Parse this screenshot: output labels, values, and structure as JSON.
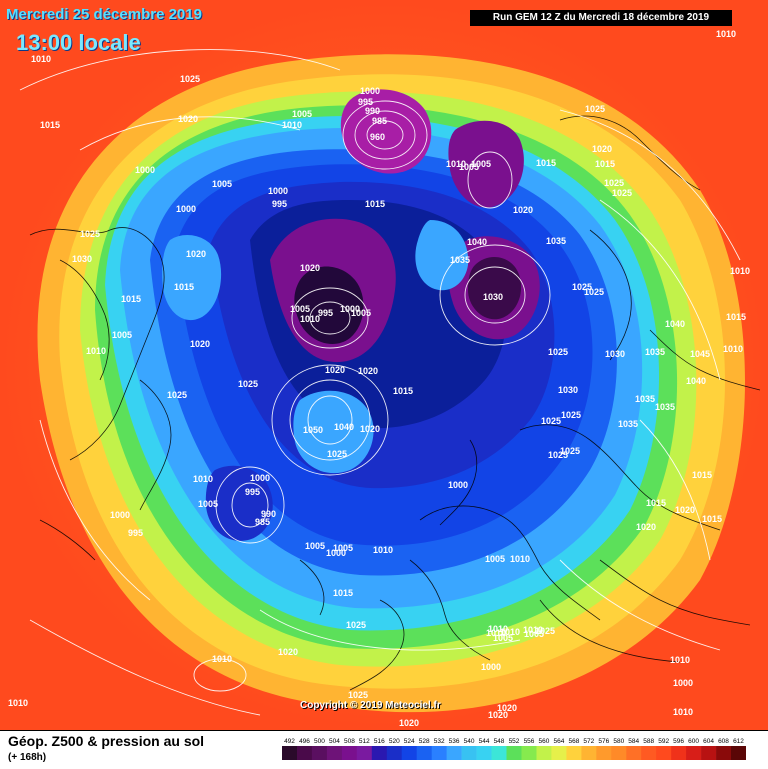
{
  "header": {
    "date": "Mercredi 25 décembre 2019",
    "time": "13:00 locale",
    "run": "Run GEM 12 Z du Mercredi 18 décembre 2019"
  },
  "copyright": "Copyright © 2019 Meteociel.fr",
  "footer": {
    "title": "Géop. Z500 & pression au sol",
    "subtitle": "(+ 168h)"
  },
  "colors": {
    "outer": "#ff4a1e",
    "orange": "#ff8a28",
    "yellow": "#ffd23c",
    "lime": "#c2f24a",
    "green": "#5ce05a",
    "cyan": "#38d2f2",
    "lightblue": "#3aa6ff",
    "blue": "#1244e6",
    "navy": "#0b1f9a",
    "purple": "#7a108e",
    "magenta": "#a81ea6",
    "dark": "#22083a"
  },
  "scale": {
    "values": [
      "492",
      "496",
      "500",
      "504",
      "508",
      "512",
      "516",
      "520",
      "524",
      "528",
      "532",
      "536",
      "540",
      "544",
      "548",
      "552",
      "556",
      "560",
      "564",
      "568",
      "572",
      "576",
      "580",
      "584",
      "588",
      "592",
      "596",
      "600",
      "604",
      "608",
      "612"
    ],
    "colors": [
      "#2a0a2a",
      "#4a0a4a",
      "#5a0f60",
      "#6e1378",
      "#7a108e",
      "#7a1aa0",
      "#2a18b0",
      "#1a2ec8",
      "#1244e6",
      "#1a62f2",
      "#2a80ff",
      "#3aa6ff",
      "#38c2f2",
      "#38d2f2",
      "#3ce6d8",
      "#5ce05a",
      "#86ea4e",
      "#c2f24a",
      "#e6f04a",
      "#ffd23c",
      "#ffb432",
      "#ff9a2c",
      "#ff8a28",
      "#ff7026",
      "#ff5a22",
      "#ff4a1e",
      "#f0321a",
      "#d81e18",
      "#b81212",
      "#8a0a0a",
      "#5a0606"
    ]
  },
  "isobars": [
    {
      "t": "1010",
      "id": "r0"
    },
    {
      "t": "1025",
      "id": "r1"
    },
    {
      "t": "1005",
      "id": "r2"
    },
    {
      "t": "1010",
      "id": "r3"
    },
    {
      "t": "1015",
      "id": "r4"
    },
    {
      "t": "1020",
      "id": "r5"
    },
    {
      "t": "1000",
      "id": "r6"
    },
    {
      "t": "995",
      "id": "r7"
    },
    {
      "t": "990",
      "id": "r8"
    },
    {
      "t": "985",
      "id": "r9"
    },
    {
      "t": "960",
      "id": "r10"
    },
    {
      "t": "1000",
      "id": "r11"
    },
    {
      "t": "1005",
      "id": "r12"
    },
    {
      "t": "1000",
      "id": "r13"
    },
    {
      "t": "1000",
      "id": "r14"
    },
    {
      "t": "995",
      "id": "r15"
    },
    {
      "t": "1015",
      "id": "r16"
    },
    {
      "t": "1025",
      "id": "r17"
    },
    {
      "t": "1025",
      "id": "r18"
    },
    {
      "t": "1020",
      "id": "r19"
    },
    {
      "t": "1025",
      "id": "r20"
    },
    {
      "t": "1025",
      "id": "r21"
    },
    {
      "t": "1010",
      "id": "r22"
    },
    {
      "t": "1020",
      "id": "r23"
    },
    {
      "t": "1015",
      "id": "r24"
    },
    {
      "t": "1030",
      "id": "r25"
    },
    {
      "t": "1025",
      "id": "r26"
    },
    {
      "t": "1015",
      "id": "r27"
    },
    {
      "t": "1005",
      "id": "r28"
    },
    {
      "t": "1010",
      "id": "r29"
    },
    {
      "t": "1020",
      "id": "r30"
    },
    {
      "t": "1015",
      "id": "r31"
    },
    {
      "t": "1020",
      "id": "r32"
    },
    {
      "t": "1015",
      "id": "r33"
    },
    {
      "t": "1005",
      "id": "r34"
    },
    {
      "t": "1040",
      "id": "r35"
    },
    {
      "t": "1035",
      "id": "r36"
    },
    {
      "t": "1030",
      "id": "r37"
    },
    {
      "t": "1035",
      "id": "r38"
    },
    {
      "t": "1025",
      "id": "r39"
    },
    {
      "t": "1030",
      "id": "r40"
    },
    {
      "t": "1035",
      "id": "r41"
    },
    {
      "t": "1040",
      "id": "r42"
    },
    {
      "t": "1045",
      "id": "r43"
    },
    {
      "t": "1040",
      "id": "r44"
    },
    {
      "t": "1035",
      "id": "r45"
    },
    {
      "t": "1035",
      "id": "r46"
    },
    {
      "t": "1025",
      "id": "r47"
    },
    {
      "t": "1030",
      "id": "r48"
    },
    {
      "t": "1025",
      "id": "r49"
    },
    {
      "t": "1035",
      "id": "r50"
    },
    {
      "t": "1040",
      "id": "r51"
    },
    {
      "t": "1050",
      "id": "r52"
    },
    {
      "t": "1025",
      "id": "r53"
    },
    {
      "t": "1020",
      "id": "r54"
    },
    {
      "t": "1015",
      "id": "r55"
    },
    {
      "t": "1025",
      "id": "r56"
    },
    {
      "t": "1020",
      "id": "r57"
    },
    {
      "t": "1000",
      "id": "r58"
    },
    {
      "t": "995",
      "id": "r59"
    },
    {
      "t": "990",
      "id": "r60"
    },
    {
      "t": "985",
      "id": "r61"
    },
    {
      "t": "1000",
      "id": "r62"
    },
    {
      "t": "1005",
      "id": "r63"
    },
    {
      "t": "1010",
      "id": "r64"
    },
    {
      "t": "1000",
      "id": "r65"
    },
    {
      "t": "995",
      "id": "r66"
    },
    {
      "t": "1005",
      "id": "r67"
    },
    {
      "t": "1010",
      "id": "r68"
    },
    {
      "t": "1000",
      "id": "r69"
    },
    {
      "t": "1005",
      "id": "r70"
    },
    {
      "t": "1010",
      "id": "r71"
    },
    {
      "t": "1015",
      "id": "r72"
    },
    {
      "t": "1025",
      "id": "r73"
    },
    {
      "t": "1020",
      "id": "r74"
    },
    {
      "t": "1010",
      "id": "r75"
    },
    {
      "t": "1025",
      "id": "r76"
    },
    {
      "t": "1020",
      "id": "r77"
    },
    {
      "t": "1020",
      "id": "r78"
    },
    {
      "t": "1010",
      "id": "r79"
    },
    {
      "t": "1005",
      "id": "r80"
    },
    {
      "t": "1010",
      "id": "r81"
    },
    {
      "t": "1000",
      "id": "r82"
    },
    {
      "t": "1005",
      "id": "r83"
    },
    {
      "t": "1000",
      "id": "r84"
    },
    {
      "t": "1010",
      "id": "r85"
    },
    {
      "t": "1015",
      "id": "r86"
    },
    {
      "t": "1020",
      "id": "r87"
    },
    {
      "t": "1015",
      "id": "r88"
    },
    {
      "t": "1020",
      "id": "r89"
    },
    {
      "t": "1015",
      "id": "r90"
    },
    {
      "t": "1010",
      "id": "r91"
    },
    {
      "t": "1010",
      "id": "r92"
    },
    {
      "t": "1005",
      "id": "r93"
    },
    {
      "t": "1010",
      "id": "r94"
    },
    {
      "t": "1005",
      "id": "r95"
    },
    {
      "t": "1000",
      "id": "r96"
    },
    {
      "t": "995",
      "id": "r97"
    },
    {
      "t": "1010",
      "id": "r98"
    },
    {
      "t": "1025",
      "id": "r99"
    },
    {
      "t": "1005",
      "id": "r100"
    },
    {
      "t": "1010",
      "id": "r101"
    },
    {
      "t": "1010",
      "id": "r102"
    },
    {
      "t": "1020",
      "id": "r103"
    },
    {
      "t": "1025",
      "id": "r104"
    },
    {
      "t": "1020",
      "id": "r105"
    },
    {
      "t": "1025",
      "id": "r106"
    },
    {
      "t": "1010",
      "id": "r107"
    },
    {
      "t": "1010",
      "id": "r108"
    },
    {
      "t": "1005",
      "id": "r109"
    },
    {
      "t": "1015",
      "id": "r110"
    },
    {
      "t": "1020",
      "id": "r111"
    },
    {
      "t": "1025",
      "id": "r112"
    },
    {
      "t": "1025",
      "id": "r113"
    }
  ]
}
